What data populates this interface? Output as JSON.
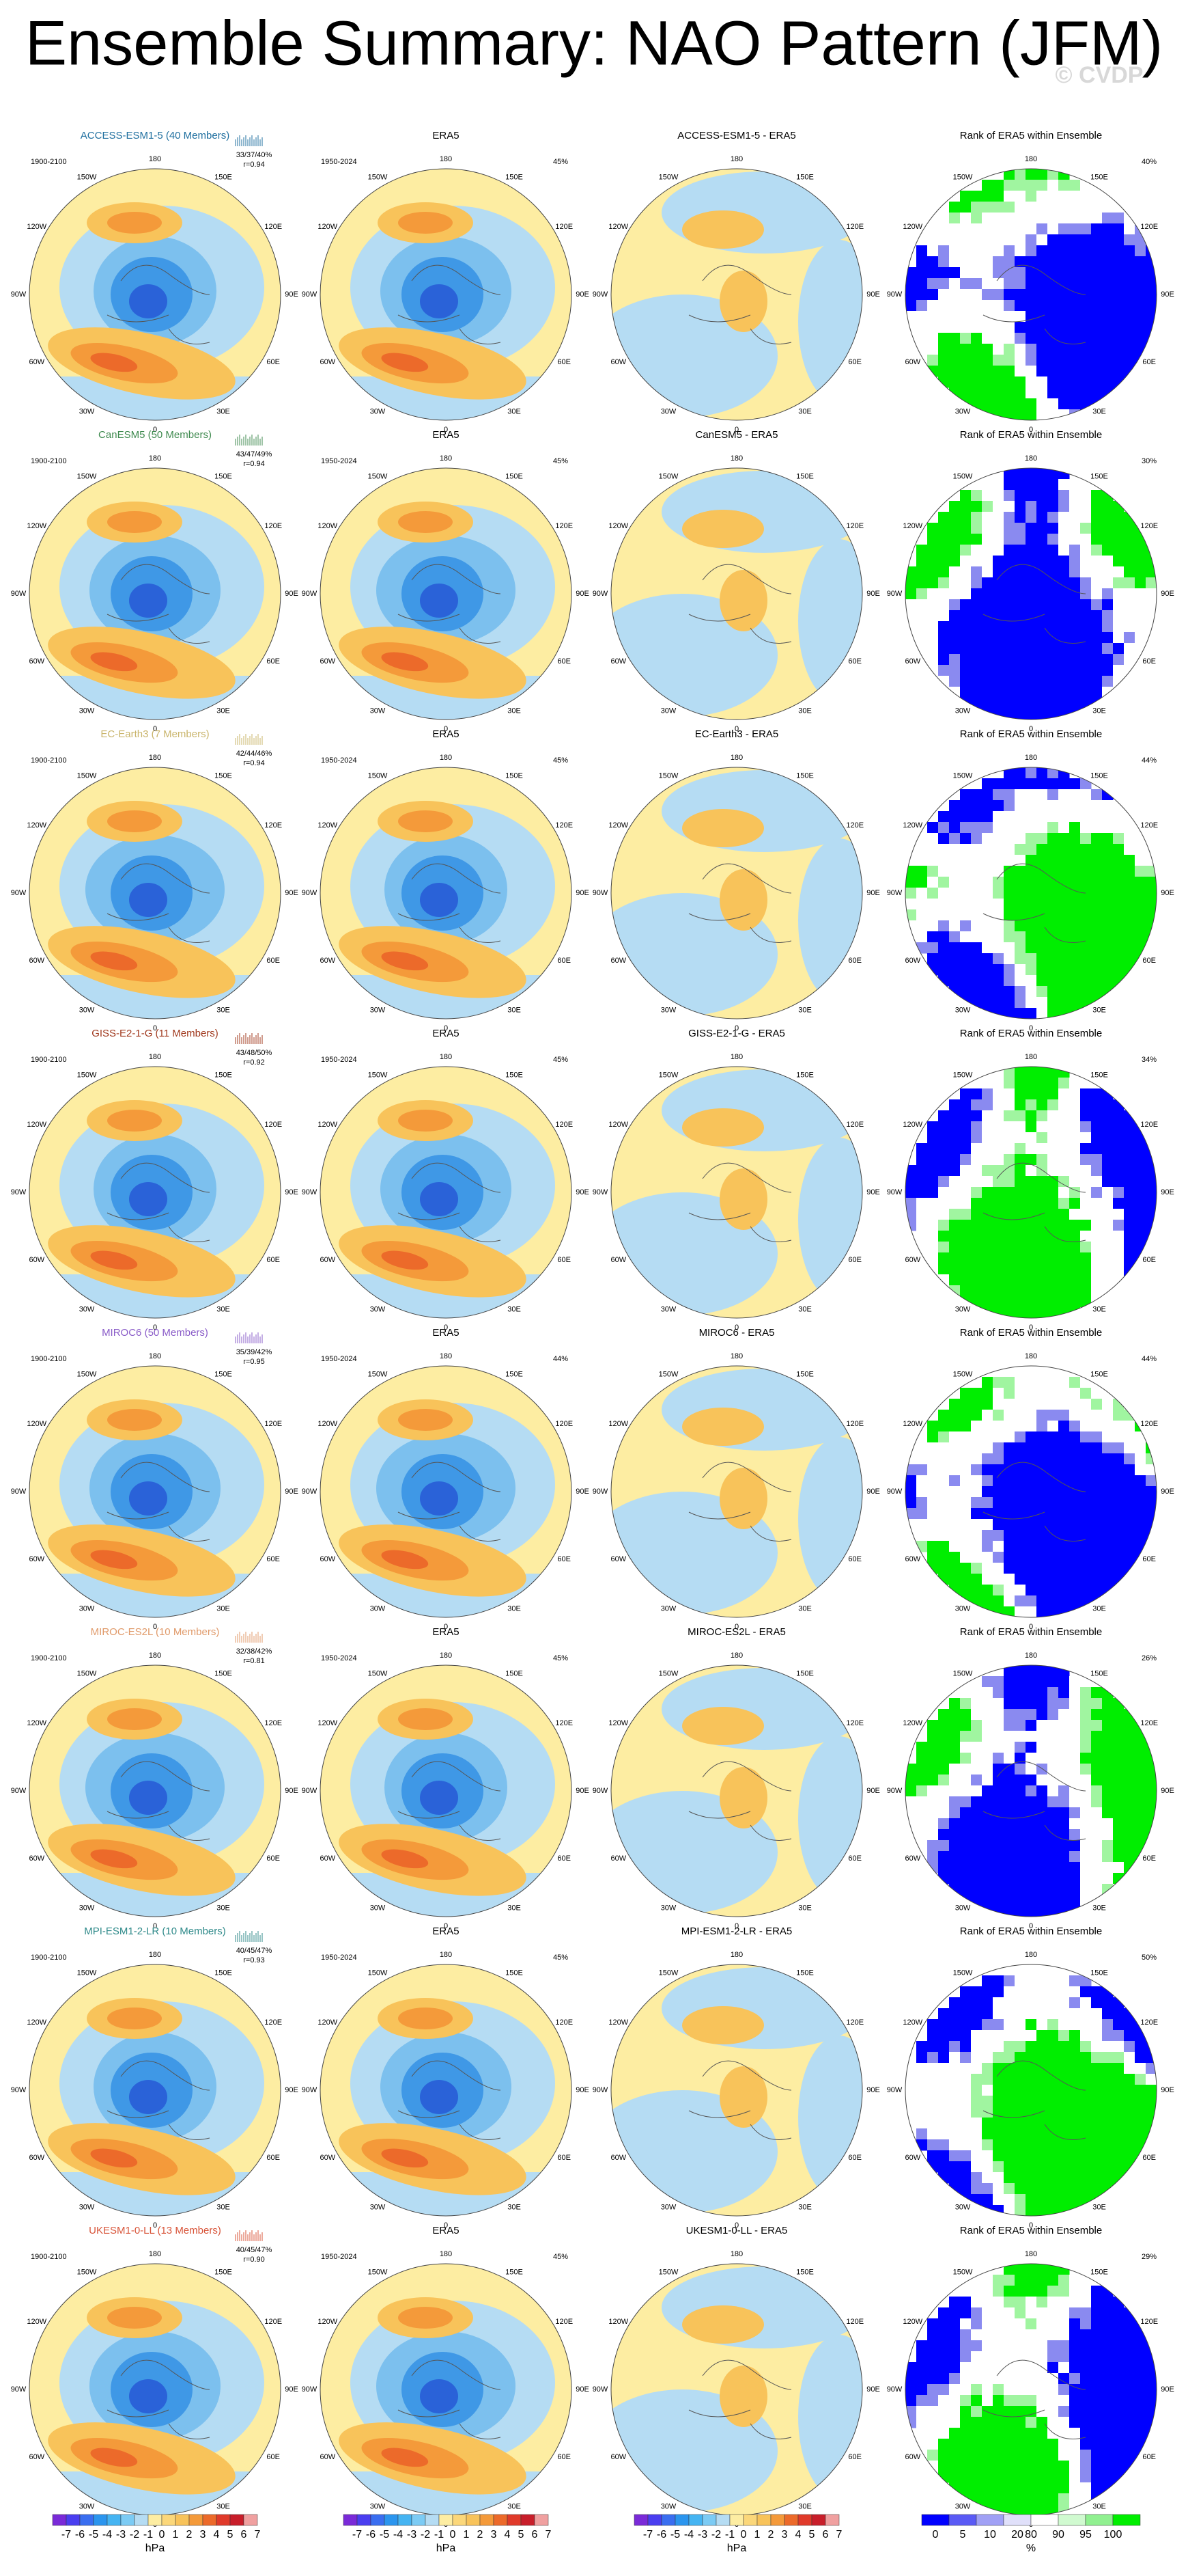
{
  "title": "Ensemble Summary: NAO Pattern (JFM)",
  "watermark": "© CVDP",
  "lon_labels": [
    "180",
    "150E",
    "120E",
    "90E",
    "60E",
    "30E",
    "0",
    "30W",
    "60W",
    "90W",
    "120W",
    "150W"
  ],
  "rows": [
    {
      "model": "ACCESS-ESM1-5 (40 Members)",
      "model_color": "#1f6f9f",
      "period": "1900-2100",
      "stats": "33/37/40%",
      "r": "r=0.94",
      "era5_title": "ERA5",
      "era5_period": "1950-2024",
      "era5_pct": "45%",
      "diff_title": "ACCESS-ESM1-5 - ERA5",
      "rank_title": "Rank of ERA5 within Ensemble",
      "rank_pct": "40%"
    },
    {
      "model": "CanESM5 (50 Members)",
      "model_color": "#3f8a4f",
      "period": "1900-2100",
      "stats": "43/47/49%",
      "r": "r=0.94",
      "era5_title": "ERA5",
      "era5_period": "1950-2024",
      "era5_pct": "45%",
      "diff_title": "CanESM5 - ERA5",
      "rank_title": "Rank of ERA5 within Ensemble",
      "rank_pct": "30%"
    },
    {
      "model": "EC-Earth3 (7 Members)",
      "model_color": "#c9b46a",
      "period": "1900-2100",
      "stats": "42/44/46%",
      "r": "r=0.94",
      "era5_title": "ERA5",
      "era5_period": "1950-2024",
      "era5_pct": "45%",
      "diff_title": "EC-Earth3 - ERA5",
      "rank_title": "Rank of ERA5 within Ensemble",
      "rank_pct": "44%"
    },
    {
      "model": "GISS-E2-1-G (11 Members)",
      "model_color": "#a0391e",
      "period": "1900-2100",
      "stats": "43/48/50%",
      "r": "r=0.92",
      "era5_title": "ERA5",
      "era5_period": "1950-2024",
      "era5_pct": "45%",
      "diff_title": "GISS-E2-1-G - ERA5",
      "rank_title": "Rank of ERA5 within Ensemble",
      "rank_pct": "34%"
    },
    {
      "model": "MIROC6 (50 Members)",
      "model_color": "#8a5cc8",
      "period": "1900-2100",
      "stats": "35/39/42%",
      "r": "r=0.95",
      "era5_title": "ERA5",
      "era5_period": "1950-2024",
      "era5_pct": "44%",
      "diff_title": "MIROC6 - ERA5",
      "rank_title": "Rank of ERA5 within Ensemble",
      "rank_pct": "44%"
    },
    {
      "model": "MIROC-ES2L (10 Members)",
      "model_color": "#e09a6a",
      "period": "1900-2100",
      "stats": "32/38/42%",
      "r": "r=0.81",
      "era5_title": "ERA5",
      "era5_period": "1950-2024",
      "era5_pct": "45%",
      "diff_title": "MIROC-ES2L - ERA5",
      "rank_title": "Rank of ERA5 within Ensemble",
      "rank_pct": "26%"
    },
    {
      "model": "MPI-ESM1-2-LR (10 Members)",
      "model_color": "#2f8a8a",
      "period": "1900-2100",
      "stats": "40/45/47%",
      "r": "r=0.93",
      "era5_title": "ERA5",
      "era5_period": "1950-2024",
      "era5_pct": "45%",
      "diff_title": "MPI-ESM1-2-LR - ERA5",
      "rank_title": "Rank of ERA5 within Ensemble",
      "rank_pct": "50%"
    },
    {
      "model": "UKESM1-0-LL (13 Members)",
      "model_color": "#d8553a",
      "period": "1900-2100",
      "stats": "40/45/47%",
      "r": "r=0.90",
      "era5_title": "ERA5",
      "era5_period": "1950-2024",
      "era5_pct": "45%",
      "diff_title": "UKESM1-0-LL - ERA5",
      "rank_title": "Rank of ERA5 within Ensemble",
      "rank_pct": "29%"
    }
  ],
  "colorbar_labels": [
    "-7",
    "-6",
    "-5",
    "-4",
    "-3",
    "-2",
    "-1",
    "0",
    "1",
    "2",
    "3",
    "4",
    "5",
    "6",
    "7"
  ],
  "colorbar_unit": "hPa",
  "rank_labels": [
    "0",
    "5",
    "10",
    "20",
    "80",
    "90",
    "95",
    "100"
  ],
  "rank_unit": "%"
}
